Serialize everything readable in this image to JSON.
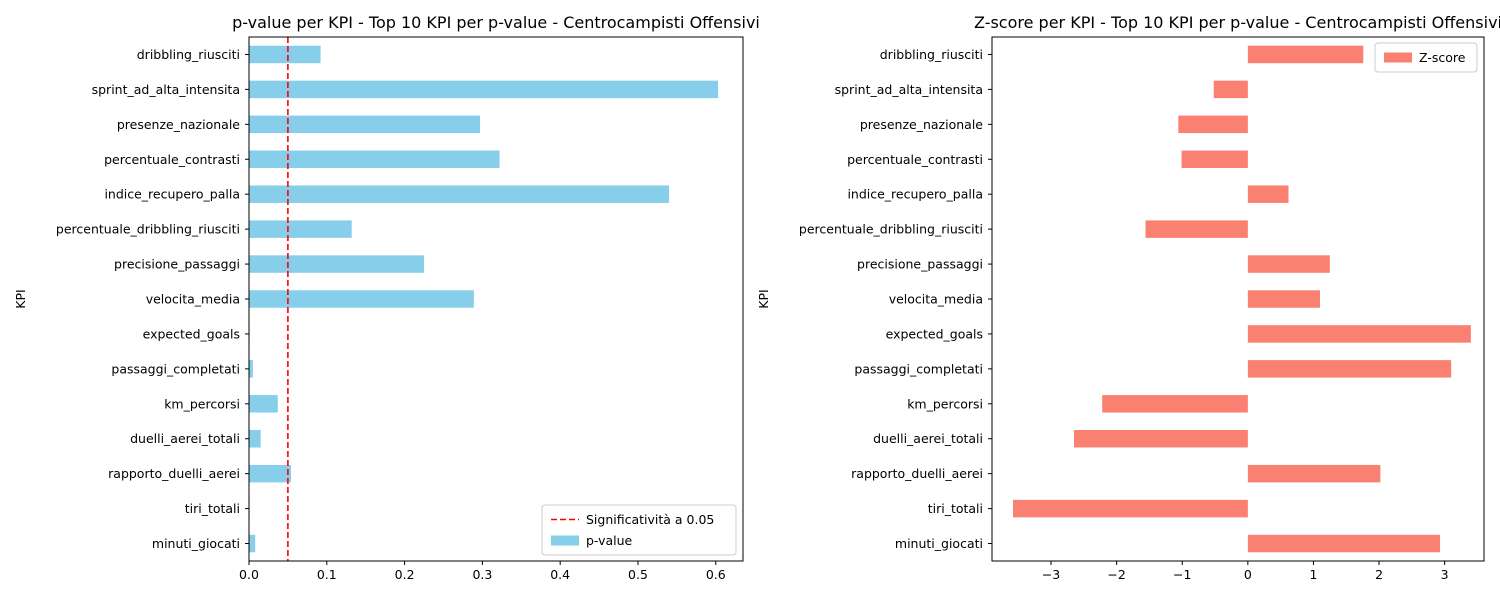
{
  "chart_data": [
    {
      "type": "bar",
      "orientation": "horizontal",
      "title": "p-value per KPI - Top 10 KPI per p-value - Centrocampisti Offensivi",
      "xlabel": "",
      "ylabel": "KPI",
      "xlim": [
        0,
        0.635
      ],
      "xticks": [
        "0.0",
        "0.1",
        "0.2",
        "0.3",
        "0.4",
        "0.5",
        "0.6"
      ],
      "categories": [
        "dribbling_riusciti",
        "sprint_ad_alta_intensita",
        "presenze_nazionale",
        "percentuale_contrasti",
        "indice_recupero_palla",
        "percentuale_dribbling_riusciti",
        "precisione_passaggi",
        "velocita_media",
        "expected_goals",
        "passaggi_completati",
        "km_percorsi",
        "duelli_aerei_totali",
        "rapporto_duelli_aerei",
        "tiri_totali",
        "minuti_giocati"
      ],
      "series": [
        {
          "name": "p-value",
          "color": "#87ceeb",
          "values": [
            0.092,
            0.603,
            0.297,
            0.322,
            0.54,
            0.132,
            0.225,
            0.289,
            0.0005,
            0.005,
            0.037,
            0.015,
            0.054,
            0.0005,
            0.008
          ]
        }
      ],
      "reference_line": {
        "label": "Significatività a 0.05",
        "value": 0.05,
        "color": "#ff0000",
        "style": "dashed"
      },
      "legend": {
        "position": "bottom-right",
        "entries": [
          "Significatività a 0.05",
          "p-value"
        ]
      },
      "grid": false
    },
    {
      "type": "bar",
      "orientation": "horizontal",
      "title": "Z-score per KPI - Top 10 KPI per p-value - Centrocampisti Offensivi",
      "xlabel": "",
      "ylabel": "KPI",
      "xlim": [
        -3.9,
        3.6
      ],
      "xticks": [
        "−3",
        "−2",
        "−1",
        "0",
        "1",
        "2",
        "3"
      ],
      "categories": [
        "dribbling_riusciti",
        "sprint_ad_alta_intensita",
        "presenze_nazionale",
        "percentuale_contrasti",
        "indice_recupero_palla",
        "percentuale_dribbling_riusciti",
        "precisione_passaggi",
        "velocita_media",
        "expected_goals",
        "passaggi_completati",
        "km_percorsi",
        "duelli_aerei_totali",
        "rapporto_duelli_aerei",
        "tiri_totali",
        "minuti_giocati"
      ],
      "series": [
        {
          "name": "Z-score",
          "color": "#fa8072",
          "values": [
            1.76,
            -0.52,
            -1.06,
            -1.01,
            0.62,
            -1.56,
            1.25,
            1.1,
            3.4,
            3.1,
            -2.22,
            -2.65,
            2.02,
            -3.58,
            2.93
          ]
        }
      ],
      "legend": {
        "position": "top-right",
        "entries": [
          "Z-score"
        ]
      },
      "grid": false
    }
  ]
}
